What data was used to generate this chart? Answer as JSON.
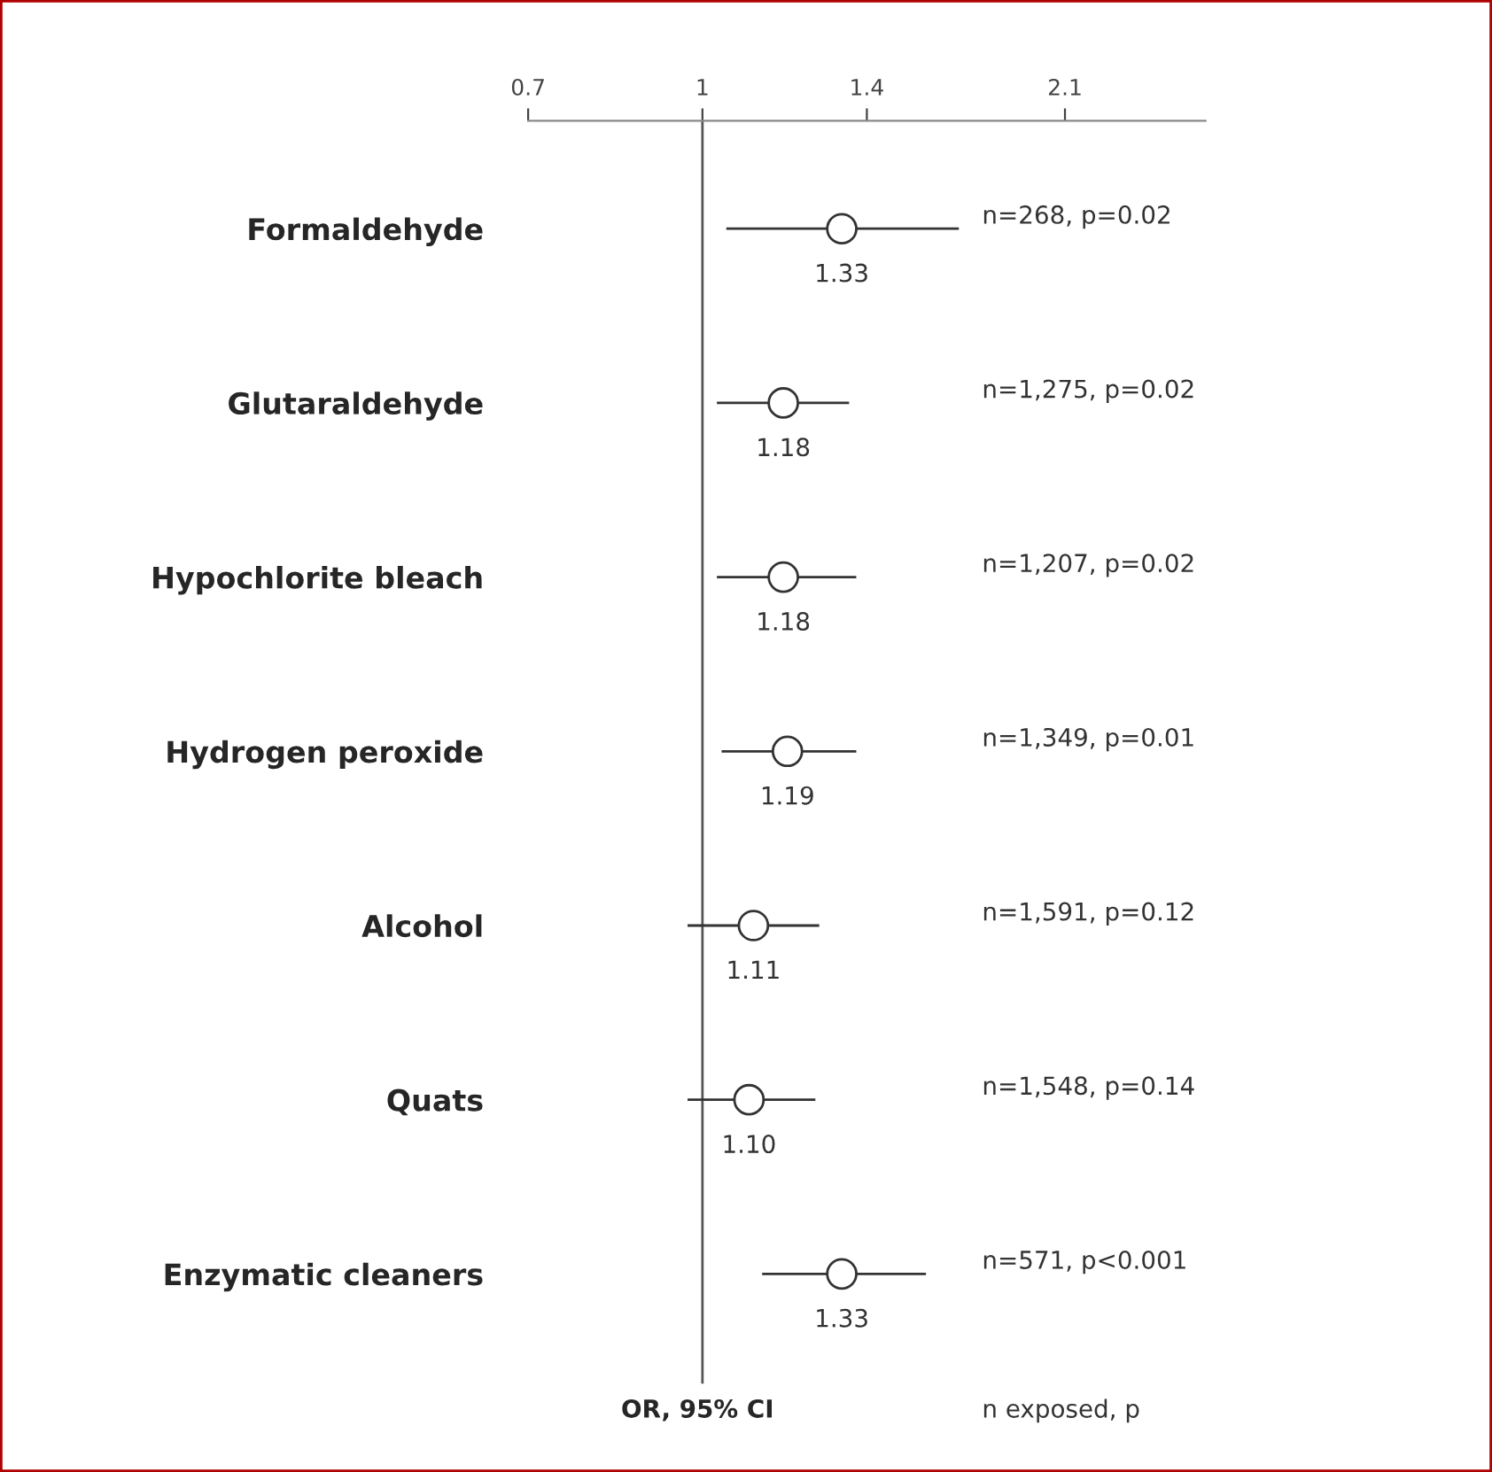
{
  "chart_data": {
    "type": "scatter",
    "orientation": "horizontal",
    "log": "x",
    "categories": [
      "Formaldehyde",
      "Glutaraldehyde",
      "Hypochlorite bleach",
      "Hydrogen peroxide",
      "Alcohol",
      "Quats",
      "Enzymatic cleaners"
    ],
    "values": [
      1.33,
      1.18,
      1.18,
      1.19,
      1.11,
      1.1,
      1.33
    ],
    "errors": [
      [
        1.05,
        1.69
      ],
      [
        1.03,
        1.35
      ],
      [
        1.03,
        1.37
      ],
      [
        1.04,
        1.37
      ],
      [
        0.97,
        1.27
      ],
      [
        0.97,
        1.26
      ],
      [
        1.13,
        1.58
      ]
    ],
    "value_labels": [
      "1.33",
      "1.18",
      "1.18",
      "1.19",
      "1.11",
      "1.10",
      "1.33"
    ],
    "color": "#333333",
    "marker": "circle",
    "grid": false,
    "xlim": [
      0.7,
      2.8
    ],
    "xticks": [
      0.7,
      1,
      1.4,
      2.1
    ],
    "xlabel": "OR, 95% CI",
    "ref_lines": [
      {
        "axis": "x",
        "value": 1,
        "color": "#555555"
      }
    ],
    "annotations": [
      "n=268, p=0.02",
      "n=1,275, p=0.02",
      "n=1,207, p=0.02",
      "n=1,349, p=0.01",
      "n=1,591, p=0.12",
      "n=1,548, p=0.14",
      "n=571, p<0.001",
      "n exposed, p"
    ]
  }
}
